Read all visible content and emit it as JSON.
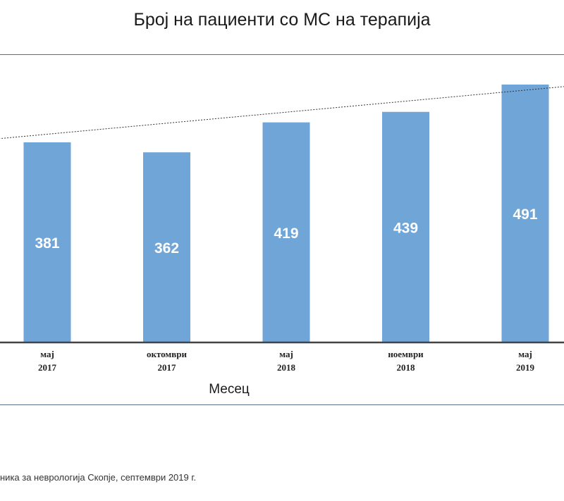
{
  "chart_data": {
    "type": "bar",
    "title": "Број на пациенти со МС на терапија",
    "xlabel": "Месец",
    "ylabel": "",
    "categories": [
      [
        "мај",
        "2017"
      ],
      [
        "октомври",
        "2017"
      ],
      [
        "мај",
        "2018"
      ],
      [
        "ноември",
        "2018"
      ],
      [
        "мај",
        "2019"
      ]
    ],
    "values": [
      381,
      362,
      419,
      439,
      491
    ],
    "ylim": [
      0,
      550
    ],
    "trendline": {
      "type": "linear",
      "style": "dotted",
      "from": {
        "x": -0.5,
        "y": 386
      },
      "to": {
        "x": 4.65,
        "y": 494
      }
    },
    "colors": {
      "bar": "#70A5D8",
      "bar_label": "#ffffff",
      "axis": "#333333",
      "frame": "#5B6F8F"
    }
  },
  "source_note": "ника за неврологија Скопје, септември 2019 г."
}
